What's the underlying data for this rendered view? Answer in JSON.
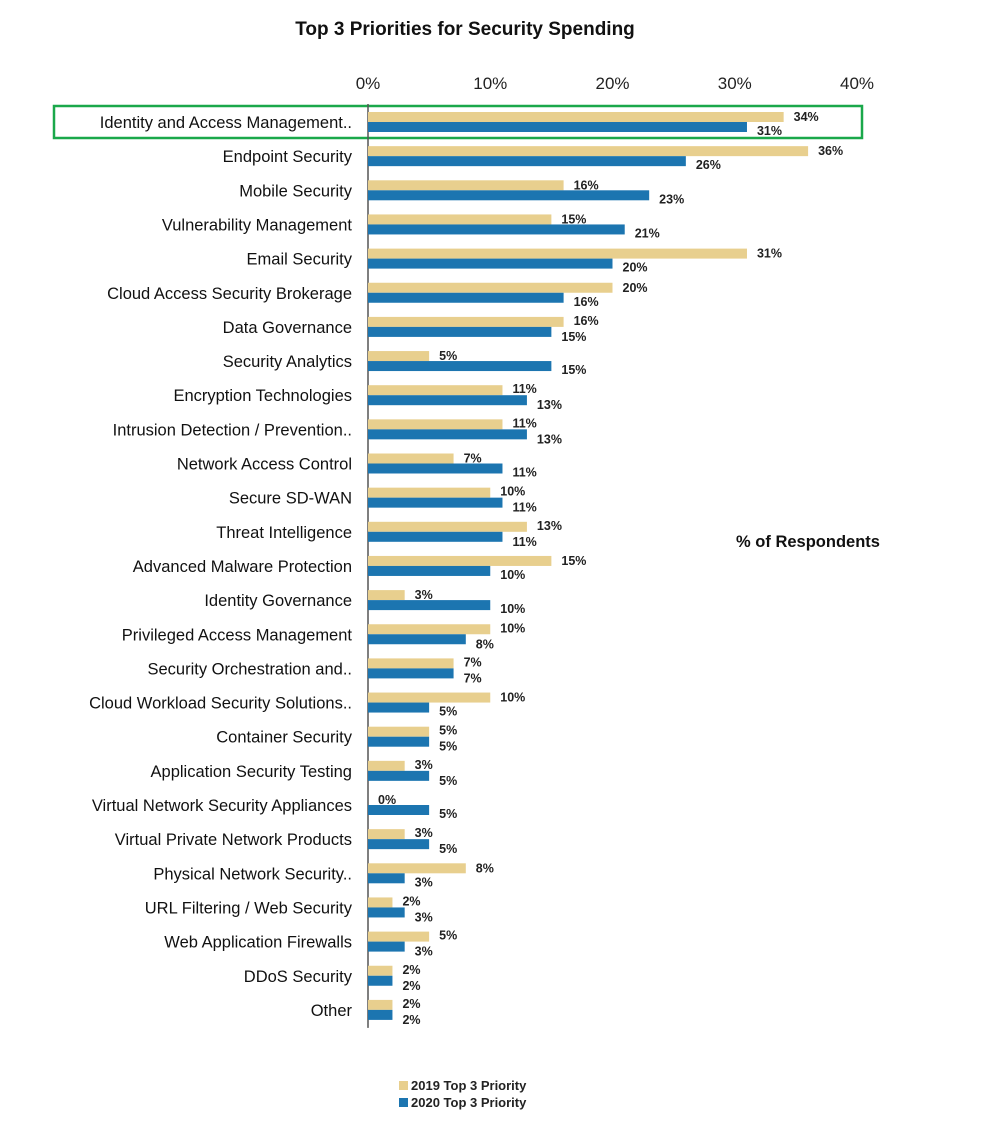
{
  "chart_data": {
    "type": "bar",
    "orientation": "horizontal",
    "title": "Top 3 Priorities for Security Spending",
    "annotation": "% of Respondents",
    "xlim": [
      0,
      40
    ],
    "ticks": [
      "0%",
      "10%",
      "20%",
      "30%",
      "40%"
    ],
    "highlighted_category": "Identity and Access Management..",
    "categories": [
      "Identity and Access Management..",
      "Endpoint Security",
      "Mobile Security",
      "Vulnerability Management",
      "Email Security",
      "Cloud Access Security Brokerage",
      "Data Governance",
      "Security Analytics",
      "Encryption Technologies",
      "Intrusion Detection / Prevention..",
      "Network Access Control",
      "Secure SD-WAN",
      "Threat Intelligence",
      "Advanced Malware Protection",
      "Identity Governance",
      "Privileged Access Management",
      "Security Orchestration and..",
      "Cloud Workload Security Solutions..",
      "Container Security",
      "Application Security Testing",
      "Virtual Network Security Appliances",
      "Virtual Private Network Products",
      "Physical Network Security..",
      "URL Filtering / Web Security",
      "Web Application Firewalls",
      "DDoS Security",
      "Other"
    ],
    "series": [
      {
        "name": "2019 Top 3 Priority",
        "color": "#e8cf8e",
        "values": [
          34,
          36,
          16,
          15,
          31,
          20,
          16,
          5,
          11,
          11,
          7,
          10,
          13,
          15,
          3,
          10,
          7,
          10,
          5,
          3,
          0,
          3,
          8,
          2,
          5,
          2,
          2
        ],
        "labels": [
          "34%",
          "36%",
          "16%",
          "15%",
          "31%",
          "20%",
          "16%",
          "5%",
          "11%",
          "11%",
          "7%",
          "10%",
          "13%",
          "15%",
          "3%",
          "10%",
          "7%",
          "10%",
          "5%",
          "3%",
          "0%",
          "3%",
          "8%",
          "2%",
          "5%",
          "2%",
          "2%"
        ]
      },
      {
        "name": "2020 Top 3 Priority",
        "color": "#1c75b0",
        "values": [
          31,
          26,
          23,
          21,
          20,
          16,
          15,
          15,
          13,
          13,
          11,
          11,
          11,
          10,
          10,
          8,
          7,
          5,
          5,
          5,
          5,
          5,
          3,
          3,
          3,
          2,
          2
        ],
        "labels": [
          "31%",
          "26%",
          "23%",
          "21%",
          "20%",
          "16%",
          "15%",
          "15%",
          "13%",
          "13%",
          "11%",
          "11%",
          "11%",
          "10%",
          "10%",
          "8%",
          "7%",
          "5%",
          "5%",
          "5%",
          "5%",
          "5%",
          "3%",
          "3%",
          "3%",
          "2%",
          "2%"
        ]
      }
    ],
    "legend_position": "bottom"
  }
}
